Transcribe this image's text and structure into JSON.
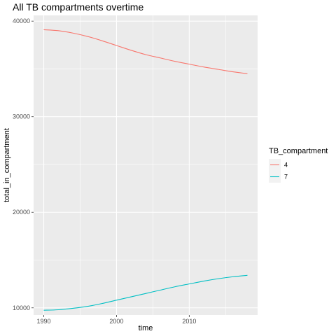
{
  "chart_data": {
    "type": "line",
    "title": "All TB compartments overtime",
    "xlabel": "time",
    "ylabel": "total_in_compartment",
    "xlim": [
      1988.6,
      2019.4
    ],
    "ylim": [
      9250,
      40600
    ],
    "x_ticks": [
      1990,
      2000,
      2010
    ],
    "y_ticks": [
      10000,
      20000,
      30000,
      40000
    ],
    "x_tick_labels": [
      "1990",
      "2000",
      "2010"
    ],
    "y_tick_labels": [
      "10000",
      "20000",
      "30000",
      "40000"
    ],
    "grid": true,
    "legend": {
      "title": "TB_compartment",
      "position": "right"
    },
    "series": [
      {
        "name": "4",
        "color": "#F8766D",
        "x": [
          1990,
          1992,
          1994,
          1996,
          1998,
          2000,
          2002,
          2004,
          2006,
          2008,
          2010,
          2012,
          2014,
          2016,
          2018
        ],
        "y": [
          39100,
          39000,
          38750,
          38400,
          37950,
          37450,
          36950,
          36500,
          36150,
          35800,
          35500,
          35200,
          34950,
          34700,
          34500
        ]
      },
      {
        "name": "7",
        "color": "#00BFC4",
        "x": [
          1990,
          1992,
          1994,
          1996,
          1998,
          2000,
          2002,
          2004,
          2006,
          2008,
          2010,
          2012,
          2014,
          2016,
          2018
        ],
        "y": [
          9750,
          9800,
          9950,
          10150,
          10450,
          10800,
          11150,
          11500,
          11850,
          12200,
          12500,
          12800,
          13050,
          13250,
          13400
        ]
      }
    ]
  }
}
